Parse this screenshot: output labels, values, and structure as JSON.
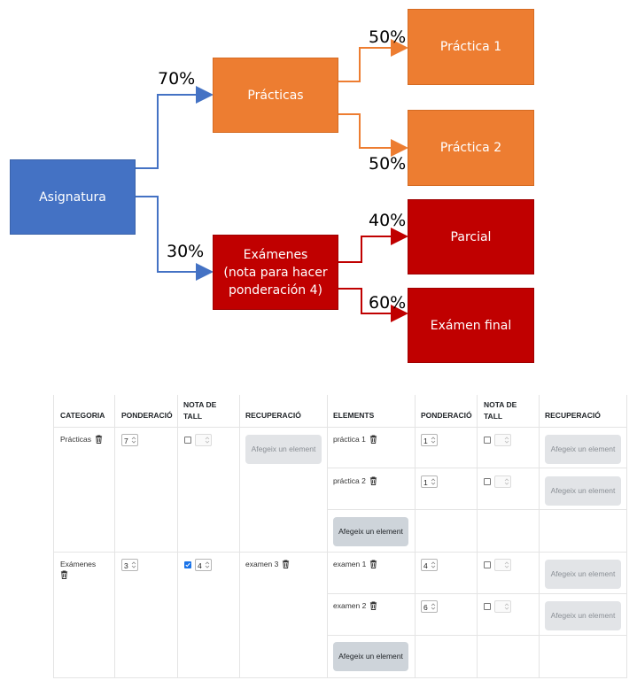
{
  "diagram": {
    "root": "Asignatura",
    "practicas": "Prácticas",
    "examenes": "Exámenes\n(nota para hacer\nponderación 4)",
    "practica1": "Práctica 1",
    "practica2": "Práctica 2",
    "parcial": "Parcial",
    "final": "Exámen final",
    "pct_practicas": "70%",
    "pct_examenes": "30%",
    "pct_p1": "50%",
    "pct_p2": "50%",
    "pct_parcial": "40%",
    "pct_final": "60%",
    "colors": {
      "blue": "#4472c4",
      "orange": "#ed7d31",
      "red": "#c00000"
    }
  },
  "table": {
    "headers": {
      "categoria": "CATEGORIA",
      "ponderacio": "PONDERACIÓ",
      "nota_de_tall": "NOTA DE TALL",
      "recuperacio": "RECUPERACIÓ",
      "elements": "ELEMENTS",
      "ponderacio2": "PONDERACIÓ",
      "nota_de_tall2": "NOTA DE TALL",
      "recuperacio2": "RECUPERACIÓ"
    },
    "add_element_label": "Afegeix un element",
    "categories": [
      {
        "name": "Prácticas",
        "ponderacio": "7",
        "nota_checked": false,
        "nota_value": "",
        "recuperacio": "",
        "elements": [
          {
            "name": "práctica 1",
            "ponderacio": "1",
            "nota_checked": false
          },
          {
            "name": "práctica 2",
            "ponderacio": "1",
            "nota_checked": false
          }
        ]
      },
      {
        "name": "Exámenes",
        "ponderacio": "3",
        "nota_checked": true,
        "nota_value": "4",
        "recuperacio": "examen 3",
        "elements": [
          {
            "name": "examen 1",
            "ponderacio": "4",
            "nota_checked": false
          },
          {
            "name": "examen 2",
            "ponderacio": "6",
            "nota_checked": false
          }
        ]
      }
    ]
  }
}
